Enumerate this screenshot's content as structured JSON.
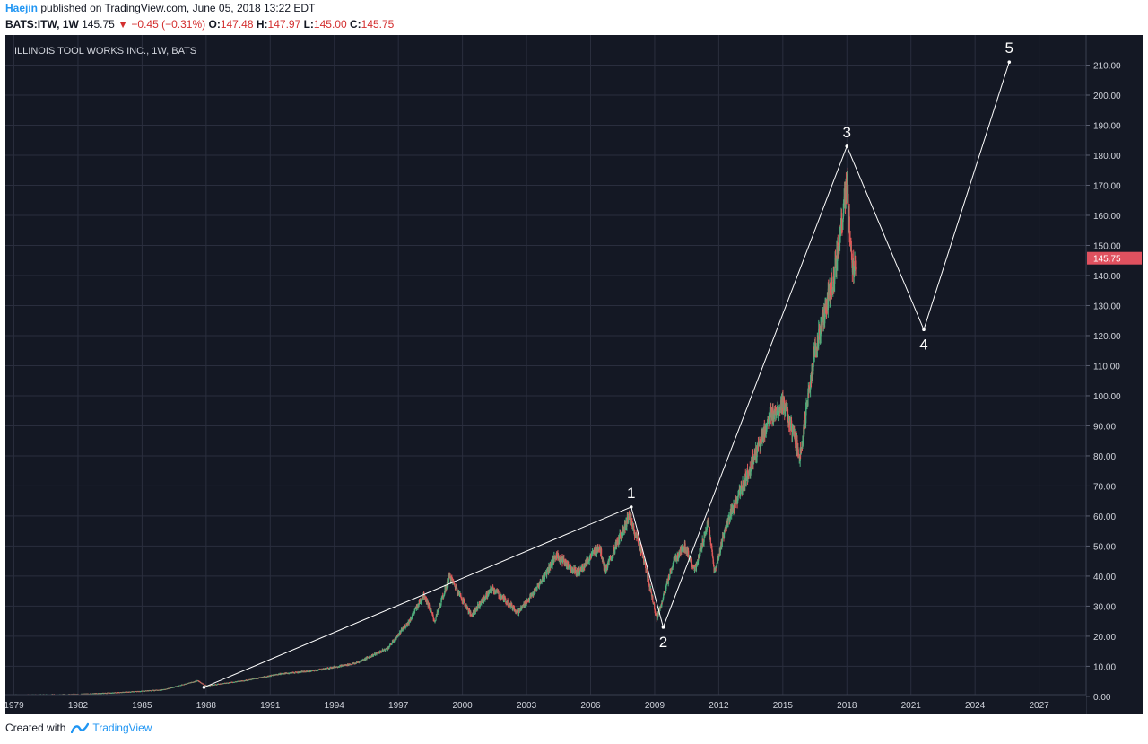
{
  "header": {
    "author": "Haejin",
    "published_text": "published on TradingView.com, June 05, 2018 13:22 EDT",
    "symbol": "BATS:ITW, 1W",
    "last_price": "145.75",
    "down_arrow": "▼",
    "change": "−0.45 (−0.31%)",
    "open_label": "O:",
    "open_value": "147.48",
    "high_label": "H:",
    "high_value": "147.97",
    "low_label": "L:",
    "low_value": "145.00",
    "close_label": "C:",
    "close_value": "145.75"
  },
  "footer": {
    "created_with": "Created with",
    "brand": "TradingView"
  },
  "colors": {
    "background": "#141824",
    "grid": "#2a2e3e",
    "axis_text": "#d1d4dc",
    "bull": "#4caf7d",
    "bear": "#e05a5a",
    "wave": "#ffffff",
    "price_tag": "#e0515f",
    "brand": "#2196f3"
  },
  "chart_data": {
    "type": "candlestick",
    "title": "ILLINOIS TOOL WORKS INC., 1W, BATS",
    "x_ticks": [
      "1979",
      "1982",
      "1985",
      "1988",
      "1991",
      "1994",
      "1997",
      "2000",
      "2003",
      "2006",
      "2009",
      "2012",
      "2015",
      "2018",
      "2021",
      "2024",
      "2027"
    ],
    "y_ticks": [
      "0.00",
      "10.00",
      "20.00",
      "30.00",
      "40.00",
      "50.00",
      "60.00",
      "70.00",
      "80.00",
      "90.00",
      "100.00",
      "110.00",
      "120.00",
      "130.00",
      "140.00",
      "150.00",
      "160.00",
      "170.00",
      "180.00",
      "190.00",
      "200.00",
      "210.00"
    ],
    "xlim": [
      1978.6,
      2029.2
    ],
    "ylim": [
      -6,
      220
    ],
    "grid": true,
    "current_price": 145.75,
    "current_price_label": "145.75",
    "price_path": [
      {
        "x": 1978.6,
        "y": 0.5
      },
      {
        "x": 1982.0,
        "y": 0.7
      },
      {
        "x": 1984.0,
        "y": 1.3
      },
      {
        "x": 1986.0,
        "y": 2.2
      },
      {
        "x": 1987.6,
        "y": 5.2
      },
      {
        "x": 1988.0,
        "y": 3.5
      },
      {
        "x": 1990.0,
        "y": 5.5
      },
      {
        "x": 1991.5,
        "y": 7.5
      },
      {
        "x": 1993.0,
        "y": 8.5
      },
      {
        "x": 1995.0,
        "y": 11.0
      },
      {
        "x": 1996.5,
        "y": 16.0
      },
      {
        "x": 1997.5,
        "y": 25.0
      },
      {
        "x": 1998.2,
        "y": 34.0
      },
      {
        "x": 1998.7,
        "y": 25.0
      },
      {
        "x": 1999.4,
        "y": 40.0
      },
      {
        "x": 2000.4,
        "y": 27.0
      },
      {
        "x": 2001.4,
        "y": 36.0
      },
      {
        "x": 2002.6,
        "y": 28.0
      },
      {
        "x": 2003.4,
        "y": 35.0
      },
      {
        "x": 2004.4,
        "y": 47.0
      },
      {
        "x": 2005.4,
        "y": 41.0
      },
      {
        "x": 2006.4,
        "y": 50.0
      },
      {
        "x": 2006.7,
        "y": 42.0
      },
      {
        "x": 2007.8,
        "y": 60.0
      },
      {
        "x": 2008.4,
        "y": 48.0
      },
      {
        "x": 2009.1,
        "y": 26.0
      },
      {
        "x": 2009.9,
        "y": 45.0
      },
      {
        "x": 2010.4,
        "y": 50.0
      },
      {
        "x": 2010.9,
        "y": 42.0
      },
      {
        "x": 2011.5,
        "y": 58.0
      },
      {
        "x": 2011.8,
        "y": 41.0
      },
      {
        "x": 2012.3,
        "y": 56.0
      },
      {
        "x": 2013.4,
        "y": 75.0
      },
      {
        "x": 2014.4,
        "y": 93.0
      },
      {
        "x": 2015.0,
        "y": 98.0
      },
      {
        "x": 2015.8,
        "y": 80.0
      },
      {
        "x": 2016.5,
        "y": 115.0
      },
      {
        "x": 2017.4,
        "y": 140.0
      },
      {
        "x": 2018.0,
        "y": 170.0
      },
      {
        "x": 2018.25,
        "y": 140.0
      },
      {
        "x": 2018.42,
        "y": 145.75
      }
    ],
    "wave_points": [
      {
        "label": "",
        "x": 1987.9,
        "y": 3.0,
        "label_pos": "none"
      },
      {
        "label": "1",
        "x": 2007.9,
        "y": 63.0,
        "label_pos": "above"
      },
      {
        "label": "2",
        "x": 2009.4,
        "y": 23.0,
        "label_pos": "below"
      },
      {
        "label": "3",
        "x": 2018.0,
        "y": 183.0,
        "label_pos": "above"
      },
      {
        "label": "4",
        "x": 2021.6,
        "y": 122.0,
        "label_pos": "below"
      },
      {
        "label": "5",
        "x": 2025.6,
        "y": 211.0,
        "label_pos": "above"
      }
    ]
  }
}
